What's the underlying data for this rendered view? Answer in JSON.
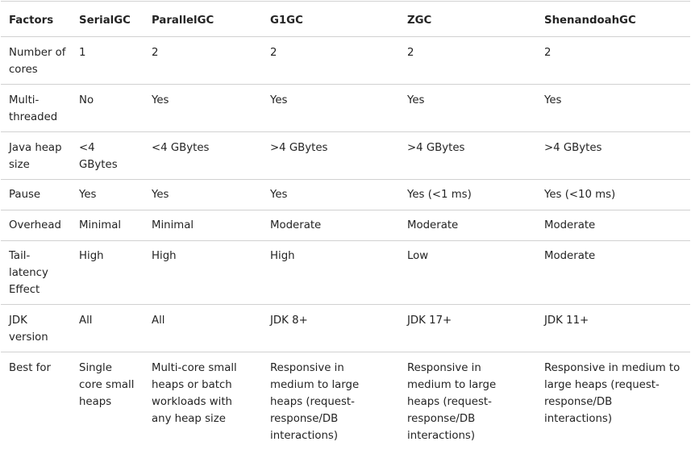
{
  "table": {
    "headers": [
      "Factors",
      "SerialGC",
      "ParallelGC",
      "G1GC",
      "ZGC",
      "ShenandoahGC"
    ],
    "rows": [
      [
        "Number of cores",
        "1",
        "2",
        "2",
        "2",
        "2"
      ],
      [
        "Multi-threaded",
        "No",
        "Yes",
        "Yes",
        "Yes",
        "Yes"
      ],
      [
        "Java heap size",
        "<4 GBytes",
        "<4 GBytes",
        ">4 GBytes",
        ">4 GBytes",
        ">4 GBytes"
      ],
      [
        "Pause",
        "Yes",
        "Yes",
        "Yes",
        "Yes (<1 ms)",
        "Yes (<10 ms)"
      ],
      [
        "Overhead",
        "Minimal",
        "Minimal",
        "Moderate",
        "Moderate",
        "Moderate"
      ],
      [
        "Tail-latency Effect",
        "High",
        "High",
        "High",
        "Low",
        "Moderate"
      ],
      [
        "JDK version",
        "All",
        "All",
        "JDK 8+",
        "JDK 17+",
        "JDK 11+"
      ],
      [
        "Best for",
        "Single core small heaps",
        "Multi-core small heaps or batch workloads with any heap size",
        "Responsive in medium to large heaps (request-response/DB interactions)",
        "Responsive in medium to large heaps (request-response/DB interactions)",
        "Responsive in medium to large heaps (request-response/DB interactions)"
      ]
    ]
  }
}
